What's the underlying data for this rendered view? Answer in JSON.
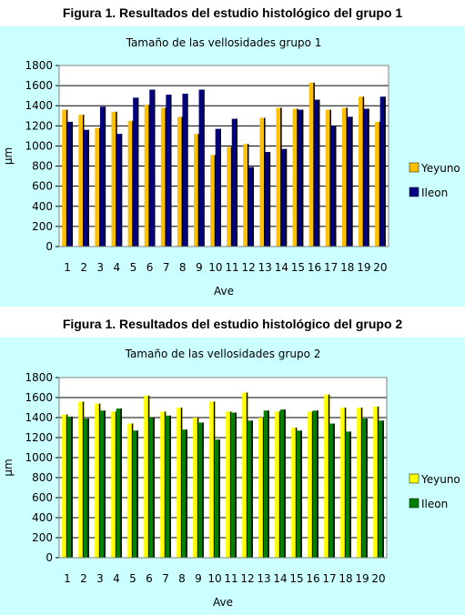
{
  "figures": [
    {
      "figure_title": "Figura 1. Resultados del estudio histológico del grupo 1",
      "colors": {
        "background": "#ccffff",
        "series1": "#ffc000",
        "series2": "#000080"
      },
      "chart_data": {
        "type": "bar",
        "title": "Tamaño de las vellosidades grupo 1",
        "xlabel": "Ave",
        "ylabel": "µm",
        "ylim": [
          0,
          1800
        ],
        "yticks": [
          "0",
          "200",
          "400",
          "600",
          "800",
          "1000",
          "1200",
          "1400",
          "1600",
          "1800"
        ],
        "categories": [
          "1",
          "2",
          "3",
          "4",
          "5",
          "6",
          "7",
          "8",
          "9",
          "10",
          "11",
          "12",
          "13",
          "14",
          "15",
          "16",
          "17",
          "18",
          "19",
          "20"
        ],
        "series": [
          {
            "name": "Yeyuno",
            "values": [
              1360,
              1310,
              1180,
              1340,
              1250,
              1410,
              1380,
              1290,
              1120,
              910,
              990,
              1020,
              1280,
              1380,
              1370,
              1630,
              1360,
              1380,
              1490,
              1240
            ]
          },
          {
            "name": "Ileon",
            "values": [
              1240,
              1160,
              1390,
              1120,
              1480,
              1560,
              1510,
              1520,
              1560,
              1170,
              1270,
              790,
              940,
              970,
              1360,
              1460,
              1200,
              1290,
              1370,
              1490
            ]
          }
        ],
        "legend_position": "right"
      }
    },
    {
      "figure_title": "Figura 1. Resultados del estudio histológico del grupo 2",
      "colors": {
        "background": "#ccffff",
        "series1": "#ffff00",
        "series2": "#008000"
      },
      "chart_data": {
        "type": "bar",
        "title": "Tamaño de las vellosidades grupo 2",
        "xlabel": "Ave",
        "ylabel": "µm",
        "ylim": [
          0,
          1800
        ],
        "yticks": [
          "0",
          "200",
          "400",
          "600",
          "800",
          "1000",
          "1200",
          "1400",
          "1600",
          "1800"
        ],
        "categories": [
          "1",
          "2",
          "3",
          "4",
          "5",
          "6",
          "7",
          "8",
          "9",
          "10",
          "11",
          "12",
          "13",
          "14",
          "15",
          "16",
          "17",
          "18",
          "19",
          "20"
        ],
        "series": [
          {
            "name": "Yeyuno",
            "values": [
              1430,
              1560,
              1540,
              1460,
              1340,
              1620,
              1460,
              1500,
              1400,
              1560,
              1460,
              1650,
              1400,
              1460,
              1300,
              1460,
              1630,
              1500,
              1500,
              1510
            ]
          },
          {
            "name": "Ileon",
            "values": [
              1410,
              1390,
              1470,
              1490,
              1270,
              1400,
              1420,
              1280,
              1350,
              1180,
              1450,
              1370,
              1470,
              1480,
              1270,
              1470,
              1340,
              1260,
              1390,
              1370
            ]
          }
        ],
        "legend_position": "right"
      }
    }
  ]
}
